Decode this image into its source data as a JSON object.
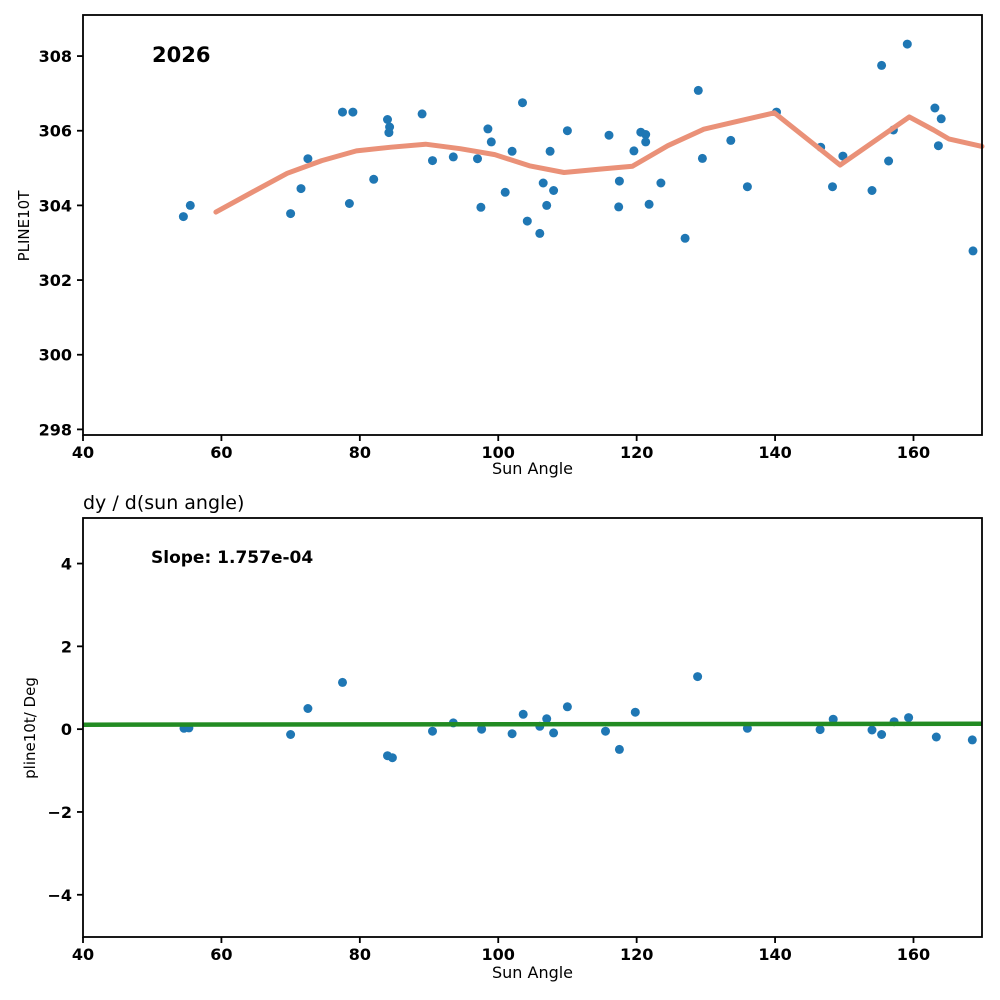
{
  "colors": {
    "background": "#ffffff",
    "scatter": "#1f77b4",
    "trend_line": "#ea9178",
    "fit_line": "#228b22",
    "axis": "#000000"
  },
  "chart_data": [
    {
      "type": "scatter",
      "subplot": "top",
      "annotation": "2026",
      "xlabel": "Sun Angle",
      "ylabel": "PLINE10T",
      "xlim": [
        40,
        169.9
      ],
      "ylim": [
        297.85,
        309.1
      ],
      "xticks": [
        40,
        60,
        80,
        100,
        120,
        140,
        160
      ],
      "yticks": [
        298,
        300,
        302,
        304,
        306,
        308
      ],
      "grid": false,
      "legend": "none",
      "points": [
        [
          54.5,
          303.7
        ],
        [
          55.5,
          304.0
        ],
        [
          70.0,
          303.78
        ],
        [
          71.5,
          304.45
        ],
        [
          72.5,
          305.25
        ],
        [
          77.5,
          306.5
        ],
        [
          79.0,
          306.5
        ],
        [
          78.5,
          304.05
        ],
        [
          82.0,
          304.7
        ],
        [
          84.0,
          306.3
        ],
        [
          84.3,
          306.1
        ],
        [
          84.2,
          305.95
        ],
        [
          89.0,
          306.45
        ],
        [
          90.5,
          305.2
        ],
        [
          93.5,
          305.3
        ],
        [
          97.0,
          305.25
        ],
        [
          97.5,
          303.95
        ],
        [
          98.5,
          306.05
        ],
        [
          99.0,
          305.7
        ],
        [
          101.0,
          304.35
        ],
        [
          102.0,
          305.45
        ],
        [
          103.5,
          306.75
        ],
        [
          104.2,
          303.58
        ],
        [
          106.0,
          303.25
        ],
        [
          106.5,
          304.6
        ],
        [
          107.0,
          304.0
        ],
        [
          107.5,
          305.45
        ],
        [
          108.0,
          304.4
        ],
        [
          110.0,
          306.0
        ],
        [
          116.0,
          305.88
        ],
        [
          117.5,
          304.65
        ],
        [
          117.4,
          303.96
        ],
        [
          119.6,
          305.46
        ],
        [
          120.6,
          305.96
        ],
        [
          121.3,
          305.9
        ],
        [
          121.3,
          305.7
        ],
        [
          121.8,
          304.03
        ],
        [
          123.5,
          304.6
        ],
        [
          127.0,
          303.12
        ],
        [
          128.9,
          307.08
        ],
        [
          129.5,
          305.26
        ],
        [
          133.6,
          305.74
        ],
        [
          136.0,
          304.5
        ],
        [
          140.2,
          306.5
        ],
        [
          146.6,
          305.56
        ],
        [
          148.3,
          304.5
        ],
        [
          149.8,
          305.32
        ],
        [
          154.0,
          304.4
        ],
        [
          155.4,
          307.75
        ],
        [
          156.4,
          305.19
        ],
        [
          157.1,
          306.02
        ],
        [
          159.1,
          308.32
        ],
        [
          163.1,
          306.61
        ],
        [
          164.0,
          306.32
        ],
        [
          163.6,
          305.6
        ],
        [
          168.6,
          302.78
        ]
      ],
      "trend_line": {
        "description": "salmon rolling-mean line",
        "x": [
          59.2,
          64.5,
          69.5,
          74.5,
          79.5,
          84.5,
          89.5,
          94.5,
          99.5,
          104.5,
          109.5,
          114.5,
          119.4,
          124.5,
          129.7,
          134.5,
          139.9,
          149.4,
          159.4,
          162.9,
          165.1,
          169.9
        ],
        "y": [
          303.82,
          304.36,
          304.86,
          305.2,
          305.46,
          305.56,
          305.64,
          305.52,
          305.36,
          305.06,
          304.88,
          304.97,
          305.05,
          305.6,
          306.04,
          306.25,
          306.48,
          305.08,
          306.37,
          306.02,
          305.78,
          305.58
        ]
      }
    },
    {
      "type": "scatter",
      "subplot": "bottom",
      "title": "dy / d(sun angle)",
      "annotation": "Slope: 1.757e-04",
      "xlabel": "Sun Angle",
      "ylabel": "pline10t/ Deg",
      "xlim": [
        40,
        169.9
      ],
      "ylim": [
        -5.02,
        5.1
      ],
      "xticks": [
        40,
        60,
        80,
        100,
        120,
        140,
        160
      ],
      "yticks": [
        -4,
        -2,
        0,
        2,
        4
      ],
      "grid": false,
      "legend": "none",
      "points": [
        [
          54.6,
          0.02
        ],
        [
          55.3,
          0.03
        ],
        [
          70.0,
          -0.13
        ],
        [
          72.5,
          0.5
        ],
        [
          77.5,
          1.13
        ],
        [
          84.0,
          -0.64
        ],
        [
          84.7,
          -0.69
        ],
        [
          90.5,
          -0.05
        ],
        [
          93.5,
          0.15
        ],
        [
          97.6,
          0.0
        ],
        [
          102.0,
          -0.11
        ],
        [
          103.6,
          0.36
        ],
        [
          106.0,
          0.07
        ],
        [
          107.0,
          0.25
        ],
        [
          108.0,
          -0.09
        ],
        [
          110.0,
          0.54
        ],
        [
          115.5,
          -0.05
        ],
        [
          117.5,
          -0.49
        ],
        [
          119.8,
          0.41
        ],
        [
          128.8,
          1.27
        ],
        [
          136.0,
          0.02
        ],
        [
          146.5,
          -0.01
        ],
        [
          148.4,
          0.24
        ],
        [
          154.0,
          -0.02
        ],
        [
          155.4,
          -0.13
        ],
        [
          157.2,
          0.18
        ],
        [
          159.3,
          0.28
        ],
        [
          163.3,
          -0.19
        ],
        [
          168.5,
          -0.26
        ]
      ],
      "fit_line": {
        "description": "green linear fit",
        "slope": 0.0001757,
        "intercept": 0.1
      }
    }
  ]
}
